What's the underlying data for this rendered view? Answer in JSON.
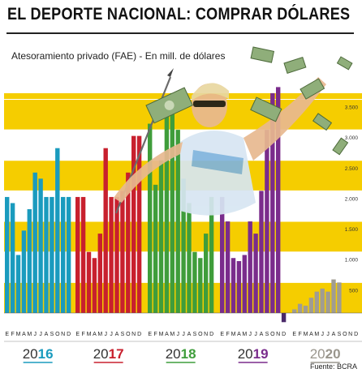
{
  "header": {
    "title": "EL DEPORTE NACIONAL: COMPRAR DÓLARES",
    "subtitle": "Atesoramiento privado (FAE) - En mill. de dólares"
  },
  "source": "Fuente: BCRA",
  "colors": {
    "background_band": "#f5cd00",
    "2016": "#1a9bbe",
    "2017": "#c8202e",
    "2018": "#3f9d3b",
    "2019": "#7a2c8c",
    "2020": "#a09c92",
    "negative": "#4a2a6a"
  },
  "chart_data": {
    "type": "bar",
    "title": "EL DEPORTE NACIONAL: COMPRAR DÓLARES",
    "subtitle": "Atesoramiento privado (FAE) - En mill. de dólares",
    "xlabel": "",
    "ylabel": "",
    "ylim": [
      -200,
      3600
    ],
    "yticks": [
      500,
      1000,
      1500,
      2000,
      2500,
      3000,
      3500
    ],
    "ytick_labels": [
      "500",
      "1.000",
      "1.500",
      "2.000",
      "2.500",
      "3.000",
      "3.500"
    ],
    "grid": true,
    "month_labels": [
      "E",
      "F",
      "M",
      "A",
      "M",
      "J",
      "J",
      "A",
      "S",
      "O",
      "N",
      "D"
    ],
    "years": [
      {
        "year_prefix": "20",
        "year_suffix": "16",
        "values": [
          1900,
          1800,
          950,
          1350,
          1700,
          2300,
          2200,
          1900,
          1900,
          2700,
          1900,
          1900
        ]
      },
      {
        "year_prefix": "20",
        "year_suffix": "17",
        "values": [
          1900,
          1900,
          1000,
          900,
          1300,
          2700,
          1900,
          1900,
          2000,
          2300,
          2900,
          2900
        ]
      },
      {
        "year_prefix": "20",
        "year_suffix": "18",
        "values": [
          3100,
          2100,
          2500,
          3300,
          3600,
          3000,
          2200,
          1800,
          1000,
          900,
          1300,
          1900
        ]
      },
      {
        "year_prefix": "20",
        "year_suffix": "19",
        "values": [
          1900,
          1500,
          900,
          850,
          950,
          1500,
          1300,
          2000,
          3000,
          3600,
          3700,
          -150
        ]
      },
      {
        "year_prefix": "20",
        "year_suffix": "20",
        "values": [
          60,
          150,
          120,
          250,
          350,
          400,
          350,
          550,
          500,
          0,
          0,
          0
        ]
      }
    ]
  }
}
